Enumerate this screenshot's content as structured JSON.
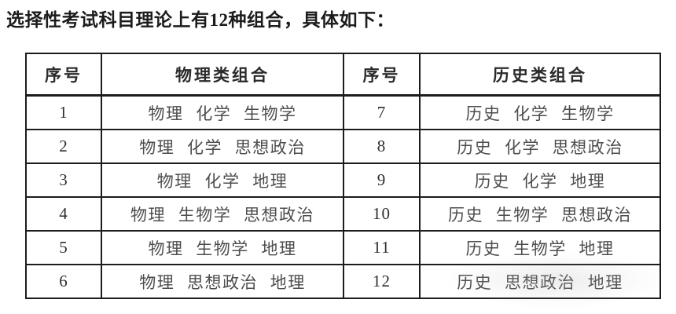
{
  "page": {
    "title": "选择性考试科目理论上有12种组合，具体如下："
  },
  "table": {
    "headers": [
      "序号",
      "物理类组合",
      "序号",
      "历史类组合"
    ],
    "rows": [
      {
        "no_left": "1",
        "combo_left": "物理 化学 生物学",
        "no_right": "7",
        "combo_right": "历史 化学 生物学"
      },
      {
        "no_left": "2",
        "combo_left": "物理 化学 思想政治",
        "no_right": "8",
        "combo_right": "历史 化学 思想政治"
      },
      {
        "no_left": "3",
        "combo_left": "物理 化学 地理",
        "no_right": "9",
        "combo_right": "历史 化学 地理"
      },
      {
        "no_left": "4",
        "combo_left": "物理 生物学 思想政治",
        "no_right": "10",
        "combo_right": "历史 生物学 思想政治"
      },
      {
        "no_left": "5",
        "combo_left": "物理 生物学 地理",
        "no_right": "11",
        "combo_right": "历史 生物学 地理"
      },
      {
        "no_left": "6",
        "combo_left": "物理 思想政治 地理",
        "no_right": "12",
        "combo_right": "历史 思想政治 地理"
      }
    ]
  },
  "colors": {
    "background": "#ffffff",
    "border": "#1c1c1c",
    "title_text": "#1c1c1c",
    "header_text": "#2a2a2a",
    "number_text": "#2e2e2e",
    "combo_text": "#4d4d4d"
  }
}
